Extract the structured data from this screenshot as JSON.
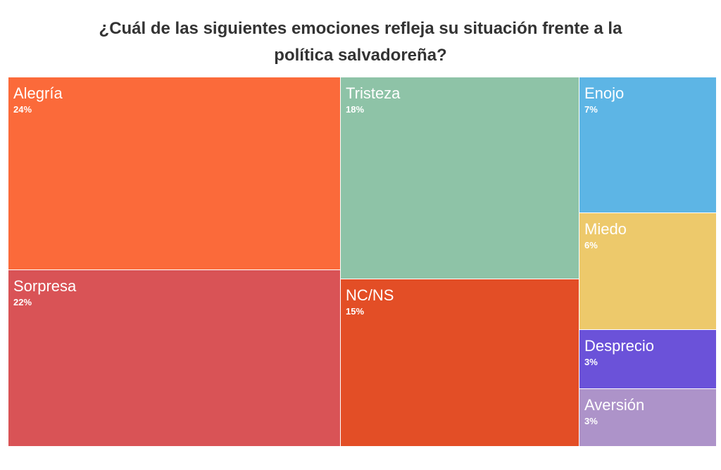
{
  "chart_data": {
    "type": "treemap",
    "title": "¿Cuál de las siguientes emociones refleja su situación frente a la política salvadoreña?",
    "title_lines": [
      "¿Cuál de las siguientes emociones refleja su situación frente a la",
      "política salvadoreña?"
    ],
    "unit": "%",
    "items": [
      {
        "label": "Alegría",
        "value": 24,
        "value_label": "24%",
        "color": "#FB6A3A"
      },
      {
        "label": "Sorpresa",
        "value": 22,
        "value_label": "22%",
        "color": "#D95356"
      },
      {
        "label": "Tristeza",
        "value": 18,
        "value_label": "18%",
        "color": "#8EC3A7"
      },
      {
        "label": "NC/NS",
        "value": 15,
        "value_label": "15%",
        "color": "#E34E26"
      },
      {
        "label": "Enojo",
        "value": 7,
        "value_label": "7%",
        "color": "#5DB5E5"
      },
      {
        "label": "Miedo",
        "value": 6,
        "value_label": "6%",
        "color": "#EDC96B"
      },
      {
        "label": "Desprecio",
        "value": 3,
        "value_label": "3%",
        "color": "#6B52D9"
      },
      {
        "label": "Aversión",
        "value": 3,
        "value_label": "3%",
        "color": "#AD93C9"
      }
    ]
  }
}
